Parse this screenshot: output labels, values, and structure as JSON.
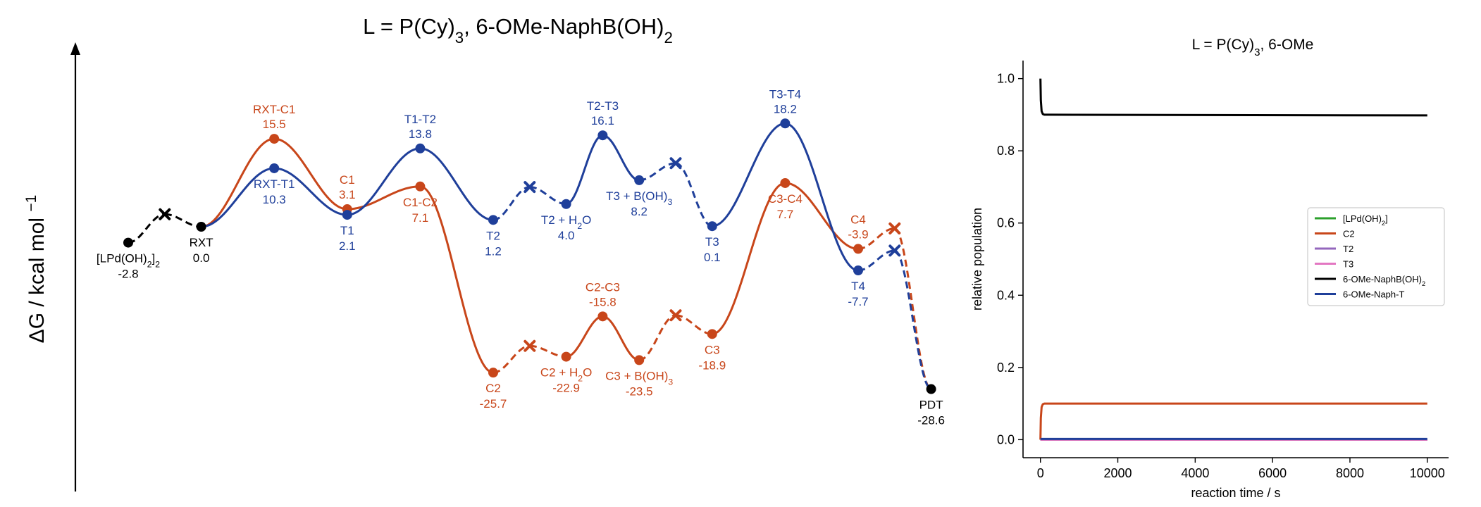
{
  "colors": {
    "black": "#000000",
    "orange": "#c8461a",
    "blue": "#1f3f9a",
    "green": "#2ca02c",
    "purple": "#9467bd",
    "pink": "#e377c2"
  },
  "chart_data": [
    {
      "type": "line",
      "subtype": "energy-profile",
      "title": "L = P(Cy)<sub>3</sub>, 6-OMe-NaphB(OH)<sub>2</sub>",
      "title_parts": [
        {
          "text": "L = P(Cy)",
          "sub": false
        },
        {
          "text": "3",
          "sub": true
        },
        {
          "text": ", 6-OMe-NaphB(OH)",
          "sub": false
        },
        {
          "text": "2",
          "sub": true
        }
      ],
      "ylabel": "ΔG / kcal mol",
      "ylabel_sup": "−1",
      "ylim": [
        -35,
        24
      ],
      "xlim": [
        0,
        11.5
      ],
      "grid": false,
      "points": [
        {
          "id": "lpd",
          "x": 0.5,
          "g": -2.8,
          "color": "black",
          "marker": "dot",
          "name_parts": [
            {
              "t": "[LPd(OH)",
              "s": false
            },
            {
              "t": "2",
              "s": true
            },
            {
              "t": "]",
              "s": false
            },
            {
              "t": "2",
              "s": true
            }
          ],
          "val": "-2.8",
          "pos": "below"
        },
        {
          "id": "ts0",
          "x": 1.0,
          "g": 2.2,
          "color": "black",
          "marker": "x"
        },
        {
          "id": "rxt",
          "x": 1.5,
          "g": 0.0,
          "color": "black",
          "marker": "dot",
          "name_parts": [
            {
              "t": "RXT",
              "s": false
            }
          ],
          "val": "0.0",
          "pos": "below"
        },
        {
          "id": "rxtc1",
          "x": 2.5,
          "g": 15.5,
          "color": "orange",
          "marker": "dot",
          "name_parts": [
            {
              "t": "RXT-C1",
              "s": false
            }
          ],
          "val": "15.5",
          "pos": "above"
        },
        {
          "id": "c1",
          "x": 3.5,
          "g": 3.1,
          "color": "orange",
          "marker": "dot",
          "name_parts": [
            {
              "t": "C1",
              "s": false
            }
          ],
          "val": "3.1",
          "pos": "above"
        },
        {
          "id": "c1c2",
          "x": 4.5,
          "g": 7.1,
          "color": "orange",
          "marker": "dot",
          "name_parts": [
            {
              "t": "C1-C2",
              "s": false
            }
          ],
          "val": "7.1",
          "pos": "below"
        },
        {
          "id": "c2",
          "x": 5.5,
          "g": -25.7,
          "color": "orange",
          "marker": "dot",
          "name_parts": [
            {
              "t": "C2",
              "s": false
            }
          ],
          "val": "-25.7",
          "pos": "below"
        },
        {
          "id": "tsc2",
          "x": 6.0,
          "g": -21.0,
          "color": "orange",
          "marker": "x"
        },
        {
          "id": "c2h2o",
          "x": 6.5,
          "g": -22.9,
          "color": "orange",
          "marker": "dot",
          "name_parts": [
            {
              "t": "C2 + H",
              "s": false
            },
            {
              "t": "2",
              "s": true
            },
            {
              "t": "O",
              "s": false
            }
          ],
          "val": "-22.9",
          "pos": "below"
        },
        {
          "id": "c2c3",
          "x": 7.0,
          "g": -15.8,
          "color": "orange",
          "marker": "dot",
          "name_parts": [
            {
              "t": "C2-C3",
              "s": false
            }
          ],
          "val": "-15.8",
          "pos": "above"
        },
        {
          "id": "c3boh",
          "x": 7.5,
          "g": -23.5,
          "color": "orange",
          "marker": "dot",
          "name_parts": [
            {
              "t": "C3 + B(OH)",
              "s": false
            },
            {
              "t": "3",
              "s": true
            }
          ],
          "val": "-23.5",
          "pos": "below"
        },
        {
          "id": "tsc3",
          "x": 8.0,
          "g": -15.6,
          "color": "orange",
          "marker": "x"
        },
        {
          "id": "c3",
          "x": 8.5,
          "g": -18.9,
          "color": "orange",
          "marker": "dot",
          "name_parts": [
            {
              "t": "C3",
              "s": false
            }
          ],
          "val": "-18.9",
          "pos": "below"
        },
        {
          "id": "c3c4",
          "x": 9.5,
          "g": 7.7,
          "color": "orange",
          "marker": "dot",
          "name_parts": [
            {
              "t": "C3-C4",
              "s": false
            }
          ],
          "val": "7.7",
          "pos": "below"
        },
        {
          "id": "c4",
          "x": 10.5,
          "g": -3.9,
          "color": "orange",
          "marker": "dot",
          "name_parts": [
            {
              "t": "C4",
              "s": false
            }
          ],
          "val": "-3.9",
          "pos": "above"
        },
        {
          "id": "tsc4",
          "x": 11.0,
          "g": -0.3,
          "color": "orange",
          "marker": "x"
        },
        {
          "id": "rxtt1",
          "x": 2.5,
          "g": 10.3,
          "color": "blue",
          "marker": "dot",
          "name_parts": [
            {
              "t": "RXT-T1",
              "s": false
            }
          ],
          "val": "10.3",
          "pos": "below"
        },
        {
          "id": "t1",
          "x": 3.5,
          "g": 2.1,
          "color": "blue",
          "marker": "dot",
          "name_parts": [
            {
              "t": "T1",
              "s": false
            }
          ],
          "val": "2.1",
          "pos": "below"
        },
        {
          "id": "t1t2",
          "x": 4.5,
          "g": 13.8,
          "color": "blue",
          "marker": "dot",
          "name_parts": [
            {
              "t": "T1-T2",
              "s": false
            }
          ],
          "val": "13.8",
          "pos": "above"
        },
        {
          "id": "t2",
          "x": 5.5,
          "g": 1.2,
          "color": "blue",
          "marker": "dot",
          "name_parts": [
            {
              "t": "T2",
              "s": false
            }
          ],
          "val": "1.2",
          "pos": "below"
        },
        {
          "id": "tst2",
          "x": 6.0,
          "g": 7.0,
          "color": "blue",
          "marker": "x"
        },
        {
          "id": "t2h2o",
          "x": 6.5,
          "g": 4.0,
          "color": "blue",
          "marker": "dot",
          "name_parts": [
            {
              "t": "T2 + H",
              "s": false
            },
            {
              "t": "2",
              "s": true
            },
            {
              "t": "O",
              "s": false
            }
          ],
          "val": "4.0",
          "pos": "below"
        },
        {
          "id": "t2t3",
          "x": 7.0,
          "g": 16.1,
          "color": "blue",
          "marker": "dot",
          "name_parts": [
            {
              "t": "T2-T3",
              "s": false
            }
          ],
          "val": "16.1",
          "pos": "above"
        },
        {
          "id": "t3boh",
          "x": 7.5,
          "g": 8.2,
          "color": "blue",
          "marker": "dot",
          "name_parts": [
            {
              "t": "T3 + B(OH)",
              "s": false
            },
            {
              "t": "3",
              "s": true
            }
          ],
          "val": "8.2",
          "pos": "below"
        },
        {
          "id": "tst3",
          "x": 8.0,
          "g": 11.2,
          "color": "blue",
          "marker": "x"
        },
        {
          "id": "t3",
          "x": 8.5,
          "g": 0.1,
          "color": "blue",
          "marker": "dot",
          "name_parts": [
            {
              "t": "T3",
              "s": false
            }
          ],
          "val": "0.1",
          "pos": "below"
        },
        {
          "id": "t3t4",
          "x": 9.5,
          "g": 18.2,
          "color": "blue",
          "marker": "dot",
          "name_parts": [
            {
              "t": "T3-T4",
              "s": false
            }
          ],
          "val": "18.2",
          "pos": "above"
        },
        {
          "id": "t4",
          "x": 10.5,
          "g": -7.7,
          "color": "blue",
          "marker": "dot",
          "name_parts": [
            {
              "t": "T4",
              "s": false
            }
          ],
          "val": "-7.7",
          "pos": "below"
        },
        {
          "id": "tst4",
          "x": 11.0,
          "g": -4.2,
          "color": "blue",
          "marker": "x"
        },
        {
          "id": "pdt",
          "x": 11.5,
          "g": -28.6,
          "color": "black",
          "marker": "dot",
          "name_parts": [
            {
              "t": "PDT",
              "s": false
            }
          ],
          "val": "-28.6",
          "pos": "below"
        }
      ],
      "segments": [
        {
          "from": "lpd",
          "to": "ts0",
          "color": "black",
          "style": "dashed"
        },
        {
          "from": "ts0",
          "to": "rxt",
          "color": "black",
          "style": "dashed"
        },
        {
          "from": "rxt",
          "to": "rxtc1",
          "color": "orange",
          "style": "solid"
        },
        {
          "from": "rxtc1",
          "to": "c1",
          "color": "orange",
          "style": "solid"
        },
        {
          "from": "c1",
          "to": "c1c2",
          "color": "orange",
          "style": "solid"
        },
        {
          "from": "c1c2",
          "to": "c2",
          "color": "orange",
          "style": "solid"
        },
        {
          "from": "c2",
          "to": "tsc2",
          "color": "orange",
          "style": "dashed"
        },
        {
          "from": "tsc2",
          "to": "c2h2o",
          "color": "orange",
          "style": "dashed"
        },
        {
          "from": "c2h2o",
          "to": "c2c3",
          "color": "orange",
          "style": "solid"
        },
        {
          "from": "c2c3",
          "to": "c3boh",
          "color": "orange",
          "style": "solid"
        },
        {
          "from": "c3boh",
          "to": "tsc3",
          "color": "orange",
          "style": "dashed"
        },
        {
          "from": "tsc3",
          "to": "c3",
          "color": "orange",
          "style": "dashed"
        },
        {
          "from": "c3",
          "to": "c3c4",
          "color": "orange",
          "style": "solid"
        },
        {
          "from": "c3c4",
          "to": "c4",
          "color": "orange",
          "style": "solid"
        },
        {
          "from": "c4",
          "to": "tsc4",
          "color": "orange",
          "style": "dashed"
        },
        {
          "from": "tsc4",
          "to": "pdt",
          "color": "orange",
          "style": "dashed"
        },
        {
          "from": "rxt",
          "to": "rxtt1",
          "color": "blue",
          "style": "solid"
        },
        {
          "from": "rxtt1",
          "to": "t1",
          "color": "blue",
          "style": "solid"
        },
        {
          "from": "t1",
          "to": "t1t2",
          "color": "blue",
          "style": "solid"
        },
        {
          "from": "t1t2",
          "to": "t2",
          "color": "blue",
          "style": "solid"
        },
        {
          "from": "t2",
          "to": "tst2",
          "color": "blue",
          "style": "dashed"
        },
        {
          "from": "tst2",
          "to": "t2h2o",
          "color": "blue",
          "style": "dashed"
        },
        {
          "from": "t2h2o",
          "to": "t2t3",
          "color": "blue",
          "style": "solid"
        },
        {
          "from": "t2t3",
          "to": "t3boh",
          "color": "blue",
          "style": "solid"
        },
        {
          "from": "t3boh",
          "to": "tst3",
          "color": "blue",
          "style": "dashed"
        },
        {
          "from": "tst3",
          "to": "t3",
          "color": "blue",
          "style": "dashed"
        },
        {
          "from": "t3",
          "to": "t3t4",
          "color": "blue",
          "style": "solid"
        },
        {
          "from": "t3t4",
          "to": "t4",
          "color": "blue",
          "style": "solid"
        },
        {
          "from": "t4",
          "to": "tst4",
          "color": "blue",
          "style": "dashed"
        },
        {
          "from": "tst4",
          "to": "pdt",
          "color": "blue",
          "style": "dashed"
        }
      ]
    },
    {
      "type": "line",
      "title_parts": [
        {
          "text": "L = P(Cy)",
          "sub": false
        },
        {
          "text": "3",
          "sub": true
        },
        {
          "text": ", 6-OMe",
          "sub": false
        }
      ],
      "xlabel": "reaction time / s",
      "ylabel": "relative population",
      "xlim": [
        -450,
        10550
      ],
      "ylim": [
        -0.05,
        1.05
      ],
      "xticks": [
        "0",
        "2000",
        "4000",
        "6000",
        "8000",
        "10000"
      ],
      "xtick_values": [
        0,
        2000,
        4000,
        6000,
        8000,
        10000
      ],
      "yticks": [
        "0.0",
        "0.2",
        "0.4",
        "0.6",
        "0.8",
        "1.0"
      ],
      "ytick_values": [
        0.0,
        0.2,
        0.4,
        0.6,
        0.8,
        1.0
      ],
      "grid": false,
      "legend_position": "center-right",
      "series": [
        {
          "name_parts": [
            {
              "t": "[LPd(OH)",
              "s": false
            },
            {
              "t": "2",
              "s": true
            },
            {
              "t": "]",
              "s": false
            }
          ],
          "color": "green",
          "x": [
            0,
            5,
            10000
          ],
          "y": [
            0.0,
            0.0,
            0.0
          ]
        },
        {
          "name_parts": [
            {
              "t": "C2",
              "s": false
            }
          ],
          "color": "orange",
          "x": [
            0,
            10,
            30,
            60,
            100,
            200,
            10000
          ],
          "y": [
            0.0,
            0.06,
            0.09,
            0.098,
            0.1,
            0.1,
            0.1
          ]
        },
        {
          "name_parts": [
            {
              "t": "T2",
              "s": false
            }
          ],
          "color": "purple",
          "x": [
            0,
            10000
          ],
          "y": [
            0.0,
            0.0
          ]
        },
        {
          "name_parts": [
            {
              "t": "T3",
              "s": false
            }
          ],
          "color": "pink",
          "x": [
            0,
            10000
          ],
          "y": [
            0.0,
            0.0
          ]
        },
        {
          "name_parts": [
            {
              "t": "6-OMe-NaphB(OH)",
              "s": false
            },
            {
              "t": "2",
              "s": true
            }
          ],
          "color": "black",
          "x": [
            0,
            10,
            30,
            60,
            100,
            200,
            10000
          ],
          "y": [
            1.0,
            0.94,
            0.91,
            0.902,
            0.9,
            0.9,
            0.898
          ]
        },
        {
          "name_parts": [
            {
              "t": "6-OMe-Naph-T",
              "s": false
            }
          ],
          "color": "blue",
          "x": [
            0,
            10000
          ],
          "y": [
            0.002,
            0.002
          ]
        }
      ]
    }
  ]
}
